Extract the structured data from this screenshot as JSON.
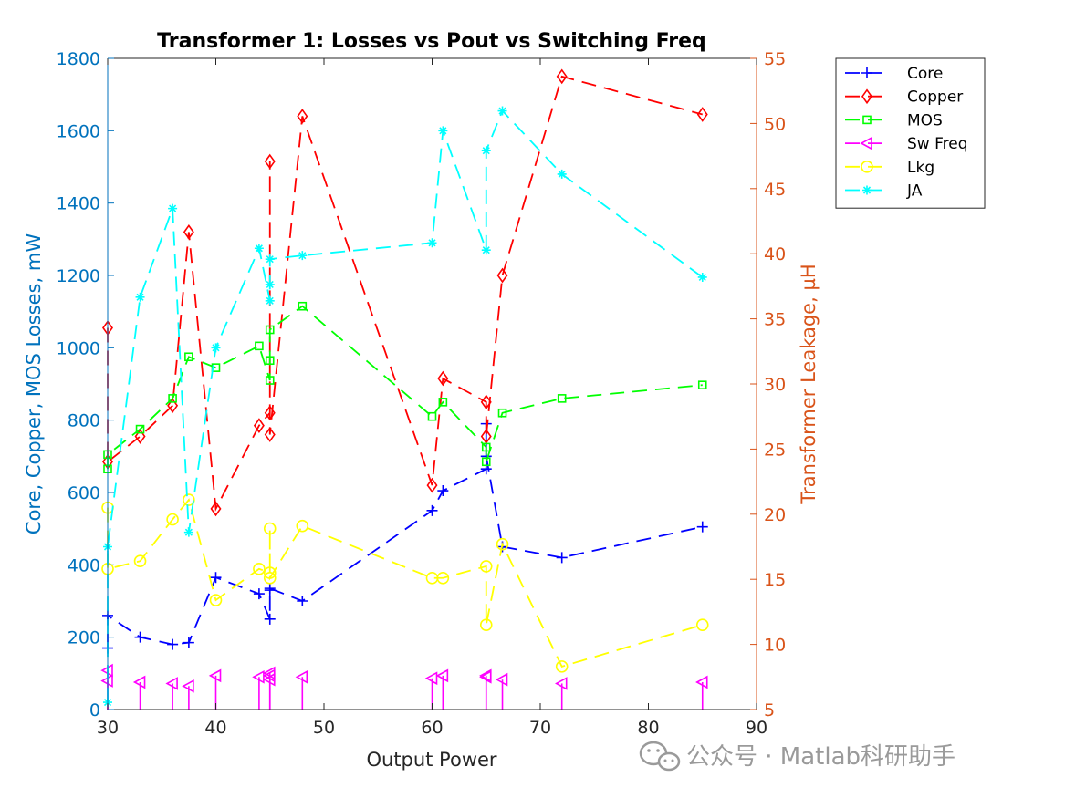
{
  "chart_data": {
    "type": "line",
    "title": "Transformer 1: Losses vs Pout vs Switching Freq",
    "xlabel": "Output Power",
    "ylabel_left": "Core, Copper, MOS Losses, mW",
    "ylabel_right": "Transformer Leakage, µH",
    "xlim": [
      30,
      90
    ],
    "ylim_left": [
      0,
      1800
    ],
    "ylim_right": [
      5,
      55
    ],
    "x_ticks": [
      "30",
      "40",
      "50",
      "60",
      "70",
      "80",
      "90"
    ],
    "y_left_ticks": [
      "0",
      "200",
      "400",
      "600",
      "800",
      "1000",
      "1200",
      "1400",
      "1600",
      "1800"
    ],
    "y_right_ticks": [
      "5",
      "10",
      "15",
      "20",
      "25",
      "30",
      "35",
      "40",
      "45",
      "50",
      "55"
    ],
    "grid": false,
    "legend_position": "outside-top-right",
    "series": [
      {
        "name": "Core",
        "axis": "left",
        "color": "#0000ff",
        "marker": "plus",
        "x": [
          30,
          30,
          33,
          36,
          37.5,
          40,
          44,
          45,
          45,
          45,
          48,
          60,
          61,
          65,
          65,
          65,
          66.5,
          72,
          85
        ],
        "y": [
          170,
          260,
          200,
          180,
          185,
          365,
          320,
          250,
          330,
          335,
          300,
          550,
          605,
          665,
          790,
          700,
          450,
          420,
          505
        ]
      },
      {
        "name": "Copper",
        "axis": "left",
        "color": "#ff0000",
        "marker": "diamond",
        "x": [
          30,
          30,
          33,
          36,
          37.5,
          40,
          44,
          45,
          45,
          45,
          48,
          60,
          61,
          65,
          65,
          66.5,
          72,
          85
        ],
        "y": [
          1055,
          685,
          755,
          840,
          1320,
          555,
          785,
          820,
          1515,
          760,
          1640,
          620,
          915,
          850,
          755,
          1200,
          1750,
          1645
        ]
      },
      {
        "name": "MOS",
        "axis": "left",
        "color": "#00ff00",
        "marker": "square",
        "x": [
          30,
          30,
          33,
          36,
          37.5,
          40,
          44,
          45,
          45,
          45,
          48,
          60,
          61,
          65,
          65,
          66.5,
          72,
          85
        ],
        "y": [
          665,
          705,
          775,
          860,
          975,
          945,
          1005,
          910,
          965,
          1050,
          1115,
          810,
          850,
          725,
          685,
          820,
          860,
          897
        ]
      },
      {
        "name": "Sw Freq",
        "axis": "right",
        "color": "#ff00ff",
        "marker": "triangle-left",
        "style": "stem",
        "x": [
          30,
          30,
          33,
          36,
          37.5,
          40,
          44,
          45,
          45,
          45,
          48,
          60,
          61,
          65,
          65,
          66.5,
          72,
          85
        ],
        "y": [
          7.2,
          8.0,
          7.1,
          7.0,
          6.8,
          7.6,
          7.5,
          7.3,
          7.6,
          7.8,
          7.5,
          7.4,
          7.6,
          7.5,
          7.6,
          7.3,
          7.0,
          7.1
        ]
      },
      {
        "name": "Lkg",
        "axis": "right",
        "color": "#ffff00",
        "marker": "circle",
        "x": [
          30,
          30,
          33,
          36,
          37.5,
          40,
          44,
          45,
          45,
          45,
          48,
          60,
          61,
          65,
          65,
          66.5,
          72,
          85
        ],
        "y": [
          20.5,
          15.8,
          16.4,
          19.6,
          21.1,
          13.4,
          15.8,
          15.5,
          18.9,
          15.1,
          19.1,
          15.1,
          15.1,
          16.0,
          11.5,
          17.7,
          8.3,
          11.5
        ]
      },
      {
        "name": "JA",
        "axis": "left",
        "color": "#00ffff",
        "marker": "asterisk",
        "x": [
          30,
          30,
          33,
          36,
          37.5,
          40,
          44,
          45,
          45,
          45,
          48,
          60,
          61,
          65,
          65,
          66.5,
          72,
          85
        ],
        "y": [
          20,
          450,
          1140,
          1385,
          490,
          1000,
          1275,
          1130,
          1175,
          1245,
          1255,
          1290,
          1600,
          1270,
          1545,
          1655,
          1480,
          1195
        ]
      }
    ]
  },
  "watermark": {
    "text": "公众号 · Matlab科研助手"
  }
}
